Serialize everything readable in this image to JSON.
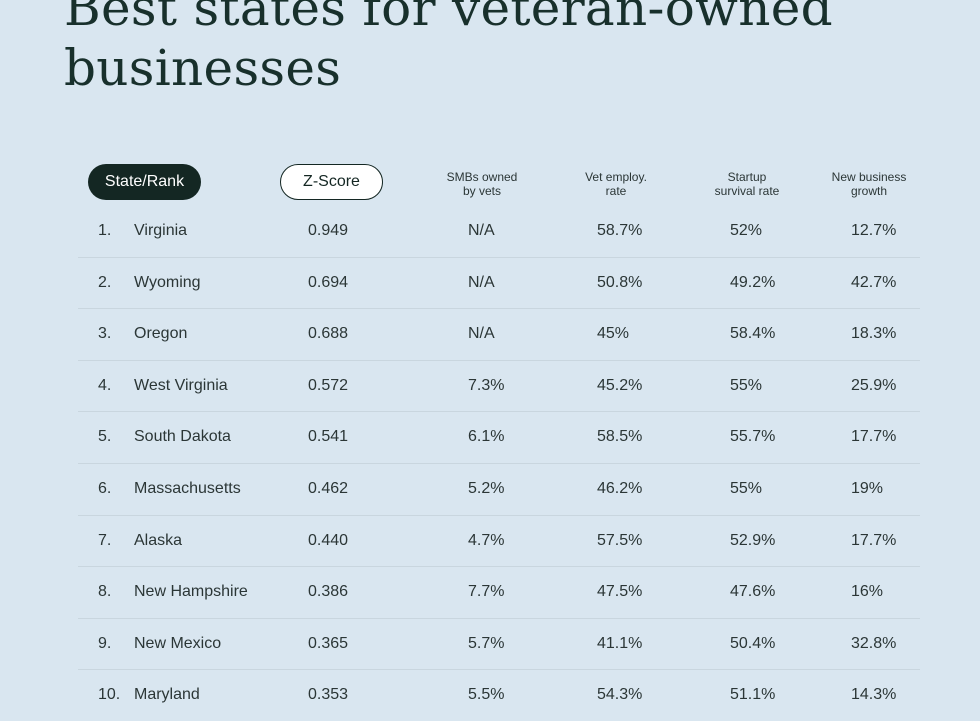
{
  "title": {
    "line1": "Best states for veteran-owned",
    "line2": "businesses"
  },
  "headers": {
    "state_rank": "State/Rank",
    "zscore": "Z-Score",
    "smb": "SMBs owned\nby vets",
    "employ": "Vet employ.\nrate",
    "survival": "Startup\nsurvival rate",
    "growth": "New business\ngrowth"
  },
  "chart_data": {
    "type": "table",
    "title": "Best states for veteran-owned businesses",
    "columns": [
      "State/Rank",
      "Z-Score",
      "SMBs owned by vets",
      "Vet employ. rate",
      "Startup survival rate",
      "New business growth"
    ],
    "rows": [
      {
        "rank": "1.",
        "state": "Virginia",
        "zscore": "0.949",
        "smb": "N/A",
        "employ": "58.7%",
        "survival": "52%",
        "growth": "12.7%"
      },
      {
        "rank": "2.",
        "state": "Wyoming",
        "zscore": "0.694",
        "smb": "N/A",
        "employ": "50.8%",
        "survival": "49.2%",
        "growth": "42.7%"
      },
      {
        "rank": "3.",
        "state": "Oregon",
        "zscore": "0.688",
        "smb": "N/A",
        "employ": "45%",
        "survival": "58.4%",
        "growth": "18.3%"
      },
      {
        "rank": "4.",
        "state": "West Virginia",
        "zscore": "0.572",
        "smb": "7.3%",
        "employ": "45.2%",
        "survival": "55%",
        "growth": "25.9%"
      },
      {
        "rank": "5.",
        "state": "South Dakota",
        "zscore": "0.541",
        "smb": "6.1%",
        "employ": "58.5%",
        "survival": "55.7%",
        "growth": "17.7%"
      },
      {
        "rank": "6.",
        "state": "Massachusetts",
        "zscore": "0.462",
        "smb": "5.2%",
        "employ": "46.2%",
        "survival": "55%",
        "growth": "19%"
      },
      {
        "rank": "7.",
        "state": "Alaska",
        "zscore": "0.440",
        "smb": "4.7%",
        "employ": "57.5%",
        "survival": "52.9%",
        "growth": "17.7%"
      },
      {
        "rank": "8.",
        "state": "New Hampshire",
        "zscore": "0.386",
        "smb": "7.7%",
        "employ": "47.5%",
        "survival": "47.6%",
        "growth": "16%"
      },
      {
        "rank": "9.",
        "state": "New Mexico",
        "zscore": "0.365",
        "smb": "5.7%",
        "employ": "41.1%",
        "survival": "50.4%",
        "growth": "32.8%"
      },
      {
        "rank": "10.",
        "state": "Maryland",
        "zscore": "0.353",
        "smb": "5.5%",
        "employ": "54.3%",
        "survival": "51.1%",
        "growth": "14.3%"
      }
    ]
  }
}
